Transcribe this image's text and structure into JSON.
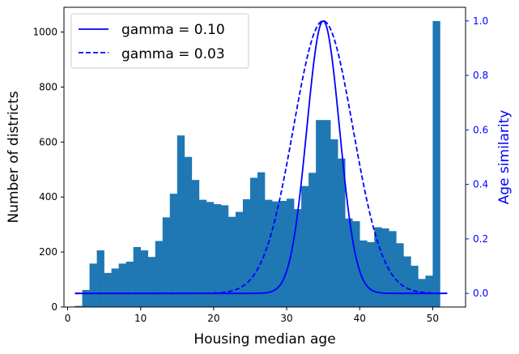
{
  "chart_data": {
    "type": "bar",
    "title": "",
    "xlabel": "Housing median age",
    "ylabel": "Number of districts",
    "y2label": "Age similarity",
    "xlim": [
      -0.5,
      54.5
    ],
    "ylim": [
      0,
      1090
    ],
    "y2lim": [
      -0.05,
      1.05
    ],
    "xticks": [
      0,
      10,
      20,
      30,
      40,
      50
    ],
    "yticks": [
      0,
      200,
      400,
      600,
      800,
      1000
    ],
    "y2ticks": [
      0.0,
      0.2,
      0.4,
      0.6,
      0.8,
      1.0
    ],
    "grid": false,
    "legend_position": "top-left",
    "colors": {
      "bars": "#1f77b4",
      "curves": "#0000ff",
      "right_axis": "#0000ff"
    },
    "histogram": {
      "bin_start": 1.0,
      "bin_width": 1.0,
      "counts": [
        4,
        62,
        158,
        206,
        124,
        140,
        158,
        165,
        218,
        206,
        182,
        240,
        326,
        412,
        624,
        546,
        462,
        390,
        382,
        374,
        370,
        328,
        346,
        392,
        470,
        490,
        390,
        384,
        386,
        394,
        356,
        440,
        488,
        680,
        680,
        610,
        540,
        322,
        312,
        242,
        236,
        290,
        286,
        276,
        232,
        184,
        150,
        102,
        114,
        1040
      ]
    },
    "series": [
      {
        "name": "gamma = 0.10",
        "style": "solid",
        "gamma": 0.1,
        "center": 35
      },
      {
        "name": "gamma = 0.03",
        "style": "dashed",
        "gamma": 0.03,
        "center": 35
      }
    ]
  }
}
